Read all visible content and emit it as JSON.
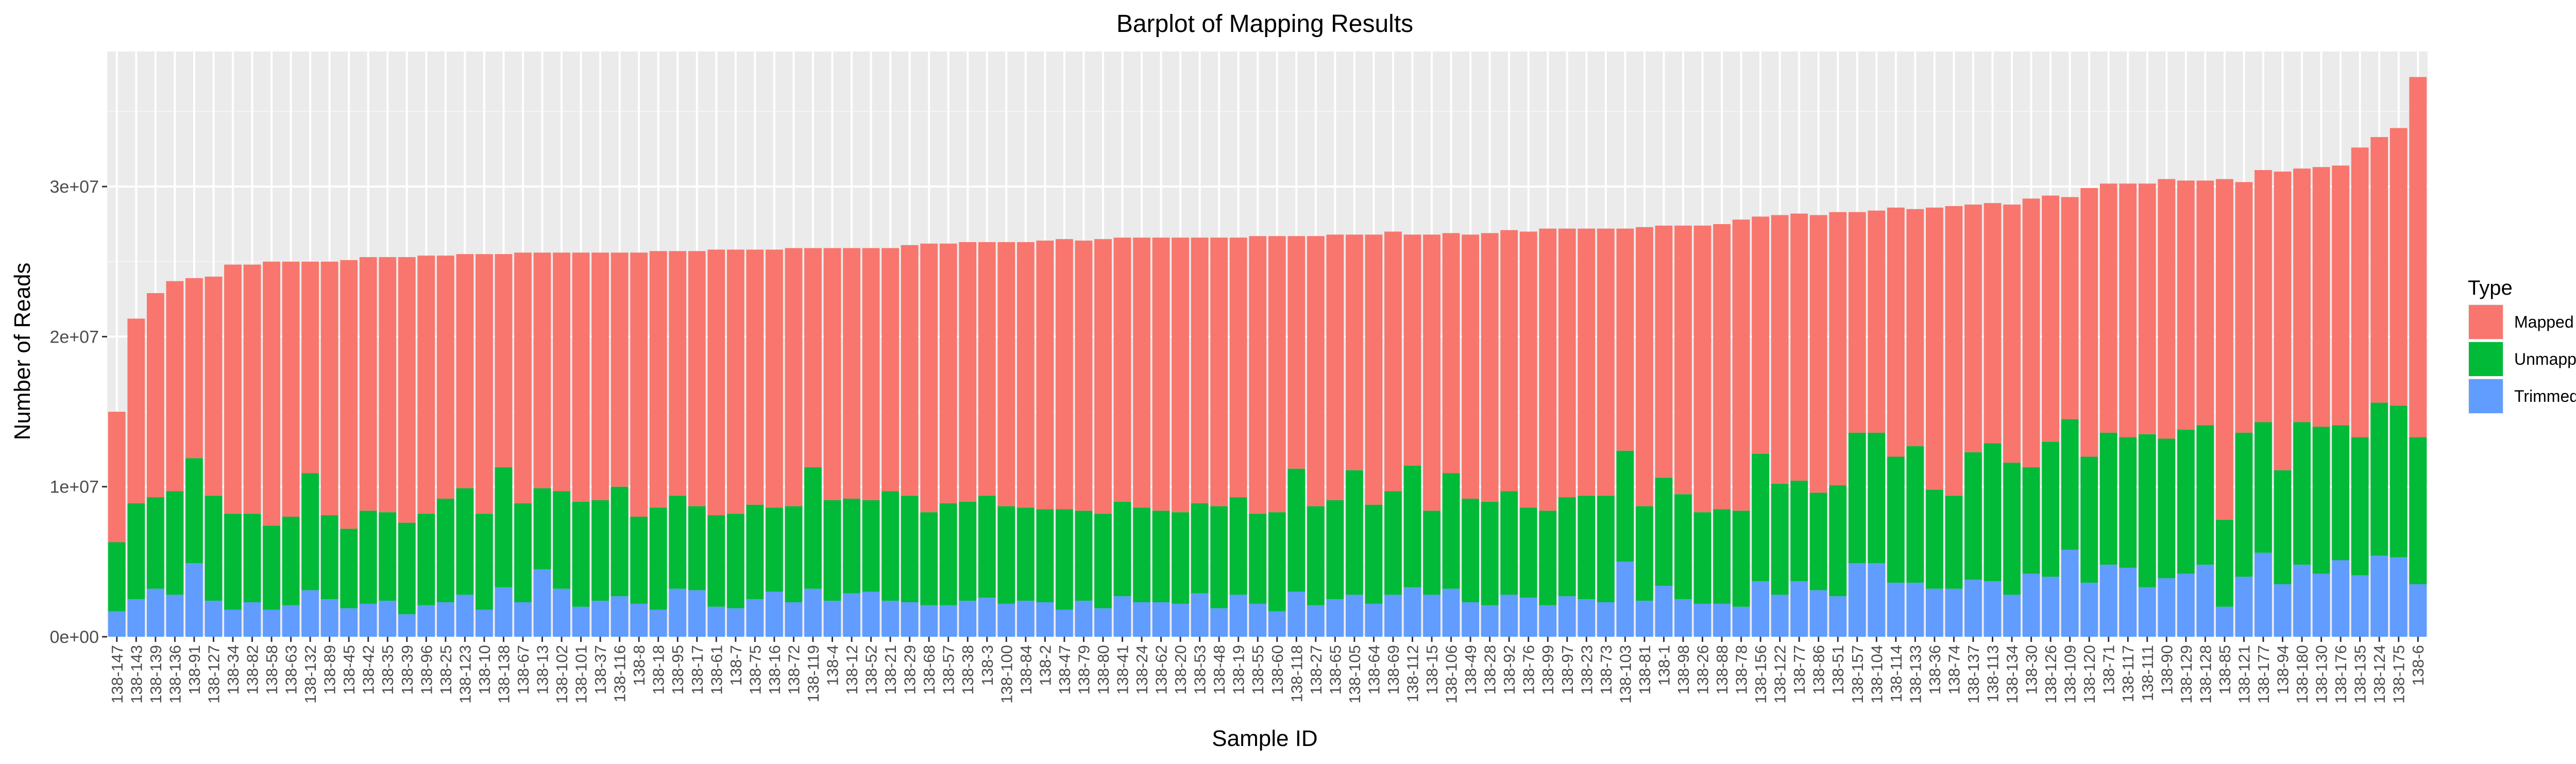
{
  "chart_data": {
    "type": "bar",
    "stacked": true,
    "title": "Barplot of Mapping Results",
    "xlabel": "Sample ID",
    "ylabel": "Number of Reads",
    "ylim": [
      0,
      39000000
    ],
    "yticks": [
      0,
      10000000,
      20000000,
      30000000
    ],
    "ytick_labels": [
      "0e+00",
      "1e+07",
      "2e+07",
      "3e+07"
    ],
    "grid": true,
    "legend": {
      "title": "Type",
      "position": "right",
      "entries": [
        {
          "label": "Mapped",
          "color": "#F8766D"
        },
        {
          "label": "Unmapped",
          "color": "#00BA38"
        },
        {
          "label": "Trimmed Off",
          "color": "#619CFF"
        }
      ]
    },
    "categories": [
      "138-147",
      "138-143",
      "138-139",
      "138-136",
      "138-91",
      "138-127",
      "138-34",
      "138-82",
      "138-58",
      "138-63",
      "138-132",
      "138-89",
      "138-45",
      "138-42",
      "138-35",
      "138-39",
      "138-96",
      "138-25",
      "138-123",
      "138-10",
      "138-138",
      "138-67",
      "138-13",
      "138-102",
      "138-101",
      "138-37",
      "138-116",
      "138-8",
      "138-18",
      "138-95",
      "138-17",
      "138-61",
      "138-7",
      "138-75",
      "138-16",
      "138-72",
      "138-119",
      "138-4",
      "138-12",
      "138-52",
      "138-21",
      "138-29",
      "138-68",
      "138-57",
      "138-38",
      "138-3",
      "138-100",
      "138-84",
      "138-2",
      "138-47",
      "138-79",
      "138-80",
      "138-41",
      "138-24",
      "138-62",
      "138-20",
      "138-53",
      "138-48",
      "138-19",
      "138-55",
      "138-60",
      "138-118",
      "138-27",
      "138-65",
      "138-105",
      "138-64",
      "138-69",
      "138-112",
      "138-15",
      "138-106",
      "138-49",
      "138-28",
      "138-92",
      "138-76",
      "138-99",
      "138-97",
      "138-23",
      "138-73",
      "138-103",
      "138-81",
      "138-1",
      "138-98",
      "138-26",
      "138-88",
      "138-78",
      "138-156",
      "138-122",
      "138-77",
      "138-86",
      "138-51",
      "138-157",
      "138-104",
      "138-114",
      "138-133",
      "138-36",
      "138-74",
      "138-137",
      "138-113",
      "138-134",
      "138-30",
      "138-126",
      "138-109",
      "138-120",
      "138-71",
      "138-117",
      "138-111",
      "138-90",
      "138-129",
      "138-128",
      "138-85",
      "138-121",
      "138-177",
      "138-94",
      "138-180",
      "138-130",
      "138-176",
      "138-135",
      "138-124",
      "138-175",
      "138-6"
    ],
    "series": [
      {
        "name": "Trimmed Off",
        "color": "#619CFF",
        "values": [
          1700000,
          2500000,
          3200000,
          2800000,
          4900000,
          2400000,
          1800000,
          2300000,
          1800000,
          2100000,
          3100000,
          2500000,
          1900000,
          2200000,
          2400000,
          1500000,
          2100000,
          2300000,
          2800000,
          1800000,
          3300000,
          2300000,
          4500000,
          3200000,
          2000000,
          2400000,
          2700000,
          2200000,
          1800000,
          3200000,
          3100000,
          2000000,
          1900000,
          2500000,
          3000000,
          2300000,
          3200000,
          2400000,
          2900000,
          3000000,
          2400000,
          2300000,
          2100000,
          2100000,
          2400000,
          2600000,
          2200000,
          2400000,
          2300000,
          1800000,
          2400000,
          1900000,
          2700000,
          2300000,
          2300000,
          2200000,
          2900000,
          1900000,
          2800000,
          2200000,
          1700000,
          3000000,
          2100000,
          2500000,
          2800000,
          2200000,
          2800000,
          3300000,
          2800000,
          3200000,
          2300000,
          2100000,
          2800000,
          2600000,
          2100000,
          2700000,
          2500000,
          2300000,
          5000000,
          2400000,
          3400000,
          2500000,
          2200000,
          2200000,
          2000000,
          3700000,
          2800000,
          3700000,
          3100000,
          2700000,
          4900000,
          4900000,
          3600000,
          3600000,
          3200000,
          3200000,
          3800000,
          3700000,
          2800000,
          4200000,
          4000000,
          5800000,
          3600000,
          4800000,
          4600000,
          3300000,
          3900000,
          4200000,
          4800000,
          2000000,
          4000000,
          5600000,
          3500000,
          4800000,
          4200000,
          5100000,
          4100000,
          5400000,
          5300000,
          3500000
        ]
      },
      {
        "name": "Unmapped",
        "color": "#00BA38",
        "values": [
          4600000,
          6400000,
          6100000,
          6900000,
          7000000,
          7000000,
          6400000,
          5900000,
          5600000,
          5900000,
          7800000,
          5600000,
          5300000,
          6200000,
          5900000,
          6100000,
          6100000,
          6900000,
          7100000,
          6400000,
          8000000,
          6600000,
          5400000,
          6500000,
          7000000,
          6700000,
          7300000,
          5800000,
          6800000,
          6200000,
          5600000,
          6100000,
          6300000,
          6300000,
          5600000,
          6400000,
          8100000,
          6700000,
          6300000,
          6100000,
          7300000,
          7100000,
          6200000,
          6800000,
          6600000,
          6800000,
          6500000,
          6200000,
          6200000,
          6700000,
          6000000,
          6300000,
          6300000,
          6300000,
          6100000,
          6100000,
          6000000,
          6800000,
          6500000,
          6000000,
          6600000,
          8200000,
          6600000,
          6600000,
          8300000,
          6600000,
          6900000,
          8100000,
          5600000,
          7700000,
          6900000,
          6900000,
          6900000,
          6000000,
          6300000,
          6600000,
          6900000,
          7100000,
          7400000,
          6300000,
          7200000,
          7000000,
          6100000,
          6300000,
          6400000,
          8500000,
          7400000,
          6700000,
          6500000,
          7400000,
          8700000,
          8700000,
          8400000,
          9100000,
          6600000,
          6200000,
          8500000,
          9200000,
          8800000,
          7100000,
          9000000,
          8700000,
          8400000,
          8800000,
          8700000,
          10200000,
          9300000,
          9600000,
          9300000,
          5800000,
          9600000,
          8700000,
          7600000,
          9500000,
          9800000,
          9000000,
          9200000,
          10200000,
          10100000,
          9800000
        ]
      },
      {
        "name": "Mapped",
        "color": "#F8766D",
        "values": [
          8700000,
          12300000,
          13600000,
          14000000,
          12000000,
          14600000,
          16600000,
          16600000,
          17600000,
          17000000,
          14100000,
          16900000,
          17900000,
          16900000,
          17000000,
          17700000,
          17200000,
          16200000,
          15600000,
          17300000,
          14200000,
          16700000,
          15700000,
          15900000,
          16600000,
          16500000,
          15600000,
          17600000,
          17100000,
          16300000,
          17000000,
          17700000,
          17600000,
          17000000,
          17200000,
          17200000,
          14600000,
          16800000,
          16700000,
          16800000,
          16200000,
          16700000,
          17900000,
          17300000,
          17300000,
          16900000,
          17600000,
          17700000,
          17900000,
          18000000,
          18000000,
          18300000,
          17600000,
          18000000,
          18200000,
          18300000,
          17700000,
          17900000,
          17300000,
          18500000,
          18400000,
          15500000,
          18000000,
          17700000,
          15700000,
          18000000,
          17300000,
          15400000,
          18400000,
          16000000,
          17600000,
          17900000,
          17400000,
          18400000,
          18800000,
          17900000,
          17800000,
          17800000,
          14800000,
          18600000,
          16800000,
          17900000,
          19100000,
          19000000,
          19400000,
          15800000,
          17900000,
          17800000,
          18500000,
          18200000,
          14700000,
          14800000,
          16600000,
          15800000,
          18800000,
          19300000,
          16500000,
          16000000,
          17200000,
          17900000,
          16400000,
          14800000,
          17900000,
          16600000,
          16900000,
          16700000,
          17300000,
          16600000,
          16300000,
          22700000,
          16700000,
          16800000,
          19900000,
          16900000,
          17300000,
          17300000,
          19300000,
          17700000,
          18500000,
          24000000
        ]
      }
    ]
  }
}
